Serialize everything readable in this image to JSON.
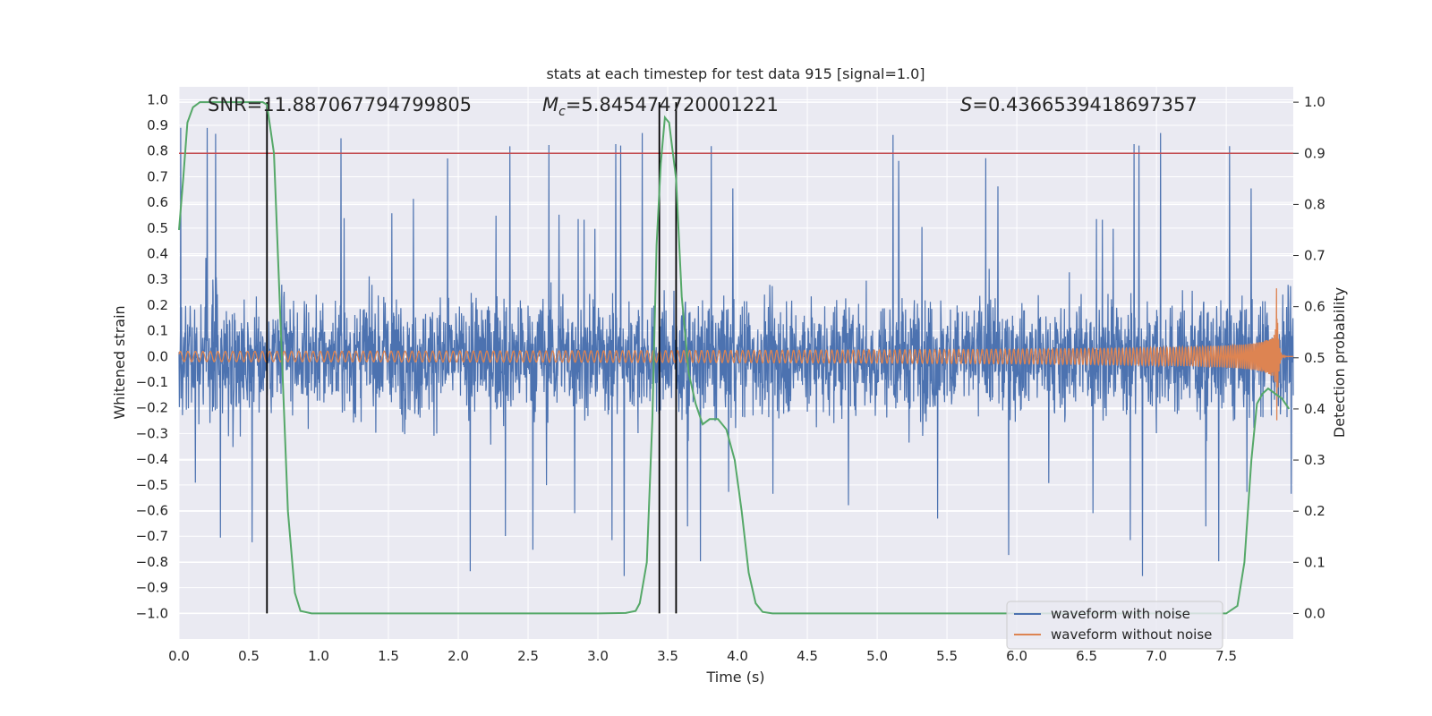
{
  "chart_data": {
    "type": "line",
    "title": "stats at each timestep for test data 915 [signal=1.0]",
    "xlabel": "Time (s)",
    "ylabel_left": "Whitened strain",
    "ylabel_right": "Detection probability",
    "xlim": [
      0.0,
      7.98
    ],
    "ylim_left": [
      -1.1,
      1.05
    ],
    "ylim_right": [
      -0.05,
      1.03
    ],
    "x_ticks": [
      "0.0",
      "0.5",
      "1.0",
      "1.5",
      "2.0",
      "2.5",
      "3.0",
      "3.5",
      "4.0",
      "4.5",
      "5.0",
      "5.5",
      "6.0",
      "6.5",
      "7.0",
      "7.5"
    ],
    "y_ticks_left": [
      "1.0",
      "0.9",
      "0.8",
      "0.7",
      "0.6",
      "0.5",
      "0.4",
      "0.3",
      "0.2",
      "0.1",
      "0.0",
      "−0.1",
      "−0.2",
      "−0.3",
      "−0.4",
      "−0.5",
      "−0.6",
      "−0.7",
      "−0.8",
      "−0.9",
      "−1.0"
    ],
    "y_ticks_right": [
      "1.0",
      "0.9",
      "0.8",
      "0.7",
      "0.6",
      "0.5",
      "0.4",
      "0.3",
      "0.2",
      "0.1",
      "0.0"
    ],
    "annotations": {
      "snr": "SNR=11.887067794799805",
      "mc_symbol": "M",
      "mc_sub": "c",
      "mc_value": "=5.845474720001221",
      "s_symbol": "S",
      "s_value": "=0.4366539418697357"
    },
    "threshold": 0.9,
    "vertical_lines": [
      0.63,
      3.44,
      3.56
    ],
    "series": [
      {
        "name": "waveform with noise",
        "color": "#4c72b0",
        "kind": "noise",
        "amplitude": 0.35,
        "peak_min": -1.0,
        "peak_max": 0.98,
        "noise_seed": 915
      },
      {
        "name": "waveform without noise",
        "color": "#dd8452",
        "kind": "chirp",
        "amplitude_start": 0.02,
        "amplitude_end": 0.3,
        "merger_time": 7.86
      },
      {
        "name": "detection probability",
        "color": "#55a868",
        "axis": "right",
        "x": [
          0.0,
          0.03,
          0.06,
          0.1,
          0.15,
          0.2,
          0.3,
          0.4,
          0.5,
          0.6,
          0.63,
          0.68,
          0.73,
          0.78,
          0.83,
          0.87,
          0.95,
          1.5,
          2.0,
          2.5,
          3.0,
          3.2,
          3.27,
          3.3,
          3.35,
          3.39,
          3.42,
          3.45,
          3.48,
          3.51,
          3.56,
          3.6,
          3.65,
          3.7,
          3.75,
          3.8,
          3.86,
          3.92,
          3.98,
          4.03,
          4.08,
          4.13,
          4.18,
          4.25,
          4.4,
          5.0,
          6.0,
          7.0,
          7.5,
          7.58,
          7.63,
          7.68,
          7.72,
          7.76,
          7.8,
          7.85,
          7.9,
          7.95
        ],
        "y": [
          0.75,
          0.85,
          0.96,
          0.99,
          1.0,
          1.0,
          1.0,
          1.0,
          1.0,
          1.0,
          0.995,
          0.9,
          0.55,
          0.2,
          0.04,
          0.005,
          0.0,
          0.0,
          0.0,
          0.0,
          0.0,
          0.001,
          0.005,
          0.02,
          0.1,
          0.38,
          0.72,
          0.88,
          0.97,
          0.96,
          0.85,
          0.62,
          0.47,
          0.41,
          0.37,
          0.38,
          0.38,
          0.36,
          0.3,
          0.2,
          0.08,
          0.02,
          0.003,
          0.0,
          0.0,
          0.0,
          0.0,
          0.0,
          0.0,
          0.015,
          0.1,
          0.3,
          0.41,
          0.43,
          0.44,
          0.43,
          0.42,
          0.4
        ]
      }
    ],
    "legend": {
      "position": "bottom-right",
      "entries": [
        "waveform with noise",
        "waveform without noise"
      ]
    },
    "colors": {
      "background": "#eaeaf2",
      "grid": "#ffffff",
      "threshold": "#c44e52",
      "vline": "#000000"
    }
  }
}
